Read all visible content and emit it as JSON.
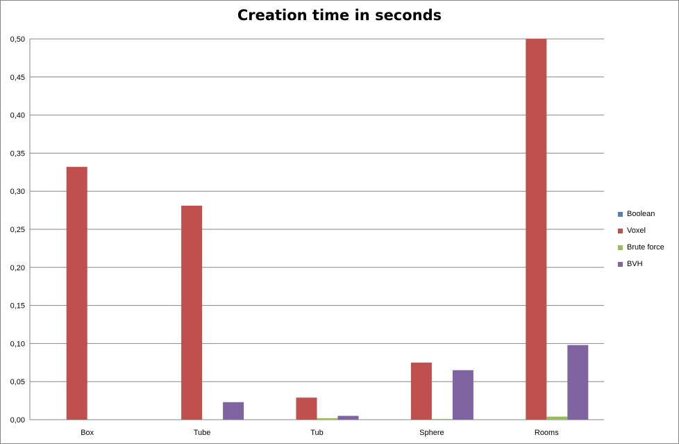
{
  "chart_data": {
    "type": "bar",
    "title": "Creation time in seconds",
    "xlabel": "",
    "ylabel": "",
    "categories": [
      "Box",
      "Tube",
      "Tub",
      "Sphere",
      "Rooms"
    ],
    "ylim": [
      0,
      0.5
    ],
    "yticks": [
      "0,00",
      "0,05",
      "0,10",
      "0,15",
      "0,20",
      "0,25",
      "0,30",
      "0,35",
      "0,40",
      "0,45",
      "0,50"
    ],
    "grid": true,
    "legend_position": "right",
    "series": [
      {
        "name": "Boolean",
        "color": "#4F81BD",
        "values": [
          0,
          0,
          0,
          0,
          0
        ]
      },
      {
        "name": "Voxel",
        "color": "#C0504D",
        "values": [
          0.332,
          0.281,
          0.029,
          0.075,
          0.5
        ]
      },
      {
        "name": "Brute force",
        "color": "#9BBB59",
        "values": [
          0,
          0,
          0.002,
          0.001,
          0.004
        ]
      },
      {
        "name": "BVH",
        "color": "#8064A2",
        "values": [
          0,
          0.023,
          0.005,
          0.065,
          0.098
        ]
      }
    ]
  }
}
